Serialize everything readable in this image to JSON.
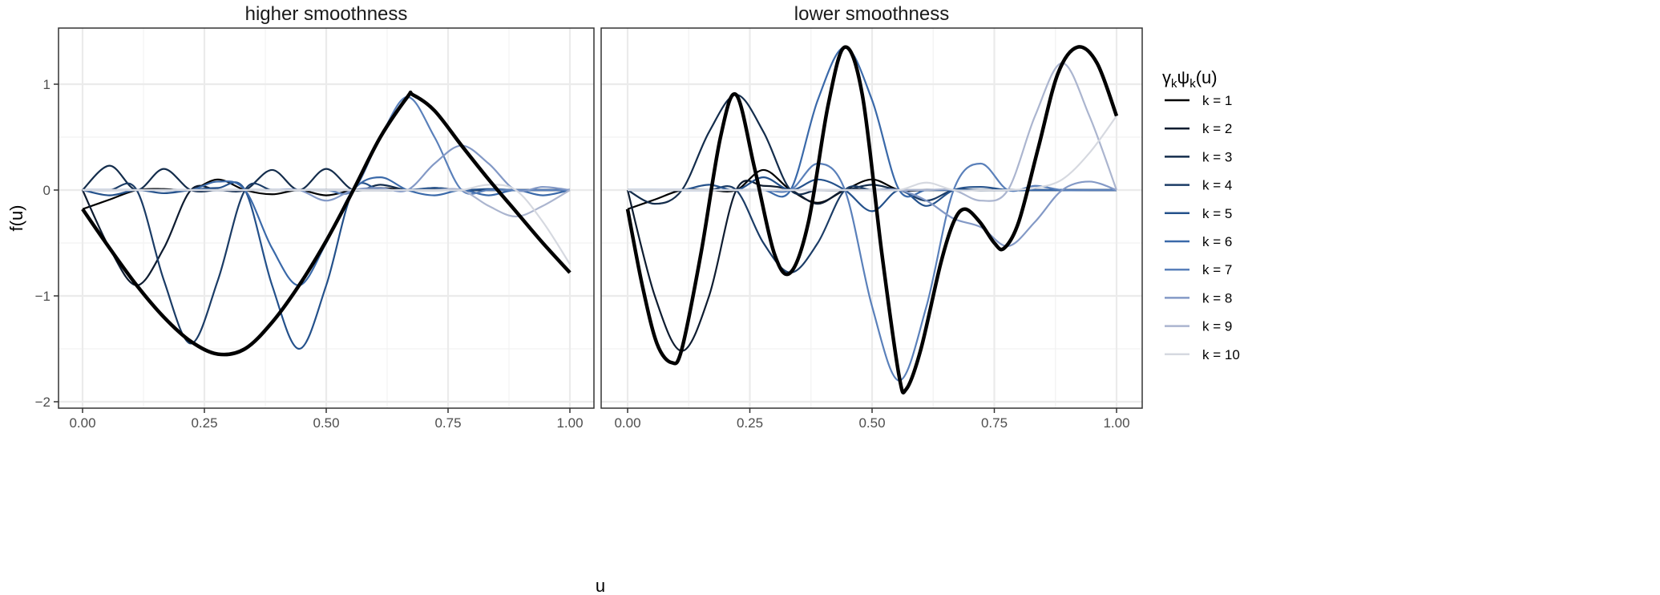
{
  "axis": {
    "ylabel": "f(u)",
    "xlabel": "u"
  },
  "legend": {
    "title_parts": [
      "γ",
      "k",
      "ψ",
      "k",
      "(u)"
    ],
    "entries": [
      "k = 1",
      "k = 2",
      "k = 3",
      "k = 4",
      "k = 5",
      "k = 6",
      "k = 7",
      "k = 8",
      "k = 9",
      "k = 10"
    ],
    "colors": [
      "#000000",
      "#0e1c30",
      "#142d4c",
      "#1b3c66",
      "#24518b",
      "#3a69a9",
      "#5a80ba",
      "#8399c6",
      "#abb5cf",
      "#d6d9e0"
    ],
    "placement": "right"
  },
  "chart_data": [
    {
      "type": "line",
      "title": "higher smoothness",
      "xlim": [
        0,
        1
      ],
      "ylim": [
        -2.05,
        1.45
      ],
      "xticks": [
        "0.00",
        "0.25",
        "0.50",
        "0.75",
        "1.00"
      ],
      "xtick_values": [
        0,
        0.25,
        0.5,
        0.75,
        1
      ],
      "yticks": [
        "1",
        "0",
        "−1",
        "−2"
      ],
      "ytick_values": [
        1,
        0,
        -1,
        -2
      ],
      "grid": true,
      "component_x": [
        0,
        0.0556,
        0.1111,
        0.1667,
        0.2222,
        0.2778,
        0.3333,
        0.3889,
        0.4444,
        0.5,
        0.5556,
        0.6111,
        0.6667,
        0.7222,
        0.7778,
        0.8333,
        0.8889,
        0.9444,
        1
      ],
      "series": [
        {
          "name": "k = 1",
          "values": [
            -0.18,
            -0.09,
            0,
            0.01,
            0,
            0.1,
            0,
            -0.04,
            0,
            -0.05,
            0,
            0.02,
            0,
            0.01,
            0,
            0,
            0,
            0,
            0
          ]
        },
        {
          "name": "k = 2",
          "values": [
            0,
            -0.55,
            -0.9,
            -0.55,
            0,
            0,
            0,
            0,
            0,
            0,
            0,
            0,
            0,
            0,
            0,
            0,
            0,
            0,
            0
          ]
        },
        {
          "name": "k = 3",
          "values": [
            0,
            0.23,
            0,
            0.2,
            0,
            0,
            0,
            0.19,
            0,
            0.2,
            0,
            0.05,
            0,
            0.02,
            0,
            0,
            0,
            0,
            0
          ]
        },
        {
          "name": "k = 4",
          "values": [
            0,
            0,
            0,
            -0.85,
            -1.45,
            -0.85,
            0,
            0,
            0,
            0,
            0,
            0,
            0,
            0,
            0,
            0,
            0,
            0,
            0
          ]
        },
        {
          "name": "k = 5",
          "values": [
            0,
            -0.05,
            0,
            -0.03,
            0,
            0.02,
            0,
            -0.9,
            -1.5,
            -0.9,
            0,
            0,
            0,
            0.02,
            0,
            0.01,
            0,
            0,
            0
          ]
        },
        {
          "name": "k = 6",
          "values": [
            0,
            0,
            0,
            0,
            0,
            0.08,
            0,
            -0.55,
            -0.9,
            -0.5,
            0,
            0.12,
            0,
            -0.05,
            0,
            -0.05,
            0,
            -0.05,
            0
          ]
        },
        {
          "name": "k = 7",
          "values": [
            0,
            0,
            0,
            0,
            0,
            0,
            0,
            0,
            0,
            0,
            0,
            0.5,
            0.88,
            0.5,
            0,
            0,
            0,
            0,
            0
          ]
        },
        {
          "name": "k = 8",
          "values": [
            0,
            0,
            0,
            0,
            0,
            0,
            0,
            0,
            0,
            -0.1,
            0,
            0.02,
            0,
            0.25,
            0.42,
            0.25,
            0,
            0.03,
            0
          ]
        },
        {
          "name": "k = 9",
          "values": [
            0,
            0,
            0,
            0,
            0,
            0,
            0,
            0,
            0,
            0,
            0,
            0,
            0,
            0,
            0,
            -0.15,
            -0.25,
            -0.15,
            0
          ]
        },
        {
          "name": "k = 10",
          "values": [
            0,
            0,
            0,
            0,
            0,
            0,
            0,
            0,
            0,
            0,
            0,
            0,
            0,
            0,
            0,
            0.05,
            0,
            -0.3,
            -0.7
          ]
        }
      ],
      "f_x": [
        0,
        0.0556,
        0.1111,
        0.1667,
        0.2222,
        0.2778,
        0.3333,
        0.3889,
        0.4444,
        0.5,
        0.5556,
        0.6111,
        0.6667,
        0.6778,
        0.7222,
        0.7778,
        0.8333,
        0.8889,
        0.9444,
        1
      ],
      "f_values": [
        -0.18,
        -0.55,
        -0.9,
        -1.2,
        -1.43,
        -1.55,
        -1.5,
        -1.25,
        -0.9,
        -0.48,
        0,
        0.5,
        0.88,
        0.9,
        0.75,
        0.42,
        0.1,
        -0.2,
        -0.5,
        -0.78
      ]
    },
    {
      "type": "line",
      "title": "lower smoothness",
      "xlim": [
        0,
        1
      ],
      "ylim": [
        -2.05,
        1.45
      ],
      "xticks": [
        "0.00",
        "0.25",
        "0.50",
        "0.75",
        "1.00"
      ],
      "xtick_values": [
        0,
        0.25,
        0.5,
        0.75,
        1
      ],
      "grid": true,
      "component_x": [
        0,
        0.0556,
        0.1111,
        0.1667,
        0.2222,
        0.2778,
        0.3333,
        0.3889,
        0.4444,
        0.5,
        0.5556,
        0.6111,
        0.6667,
        0.7222,
        0.7778,
        0.8333,
        0.8889,
        0.9444,
        1
      ],
      "series": [
        {
          "name": "k = 1",
          "values": [
            -0.18,
            -0.09,
            0,
            0,
            0,
            0.19,
            0,
            -0.12,
            0,
            0.1,
            0,
            0,
            0,
            0,
            0,
            0,
            0,
            0,
            0
          ]
        },
        {
          "name": "k = 2",
          "values": [
            0,
            -1.0,
            -1.52,
            -1.0,
            0,
            0.04,
            0,
            -0.13,
            0,
            0,
            0,
            0,
            0,
            0,
            0,
            0,
            0,
            0,
            0
          ]
        },
        {
          "name": "k = 3",
          "values": [
            0,
            -0.13,
            0,
            0.55,
            0.9,
            0.55,
            0,
            0,
            0,
            0.05,
            0,
            0,
            0,
            0,
            0,
            0,
            0,
            0,
            0
          ]
        },
        {
          "name": "k = 4",
          "values": [
            0,
            0,
            0,
            0,
            0,
            -0.5,
            -0.78,
            -0.5,
            0,
            0,
            0,
            -0.1,
            0,
            0,
            0,
            0,
            0,
            0,
            0
          ]
        },
        {
          "name": "k = 5",
          "values": [
            0,
            0,
            0,
            0.05,
            0,
            0.12,
            0,
            0.1,
            0,
            -0.2,
            0,
            -0.15,
            0,
            0.03,
            0,
            0,
            0,
            0,
            0
          ]
        },
        {
          "name": "k = 6",
          "values": [
            0,
            0,
            0,
            0,
            0,
            0,
            0,
            0.85,
            1.35,
            0.85,
            0,
            0,
            0,
            0,
            0,
            0,
            0,
            0,
            0
          ]
        },
        {
          "name": "k = 7",
          "values": [
            0,
            0,
            0,
            0,
            0,
            0,
            0,
            0.25,
            0,
            -1.1,
            -1.8,
            -1.1,
            0,
            0.25,
            0,
            0.04,
            0,
            0,
            0
          ]
        },
        {
          "name": "k = 8",
          "values": [
            0,
            0,
            0,
            0,
            0,
            0,
            0,
            0,
            0,
            0,
            0,
            -0.1,
            -0.27,
            -0.35,
            -0.53,
            -0.3,
            0,
            0.08,
            0
          ]
        },
        {
          "name": "k = 9",
          "values": [
            0,
            0,
            0,
            0,
            0,
            0,
            0,
            0,
            0,
            0,
            0,
            0,
            0,
            -0.1,
            0,
            0.7,
            1.2,
            0.7,
            0
          ]
        },
        {
          "name": "k = 10",
          "values": [
            0,
            0,
            0,
            0,
            0,
            0,
            0,
            0,
            0,
            0,
            0,
            0.07,
            0,
            0,
            0,
            0.02,
            0.1,
            0.35,
            0.7
          ]
        }
      ],
      "f_x": [
        0,
        0.03,
        0.06,
        0.09,
        0.111,
        0.15,
        0.19,
        0.222,
        0.26,
        0.3,
        0.333,
        0.37,
        0.41,
        0.444,
        0.48,
        0.52,
        0.555,
        0.57,
        0.6,
        0.64,
        0.667,
        0.69,
        0.72,
        0.75,
        0.77,
        0.8,
        0.84,
        0.88,
        0.92,
        0.96,
        1
      ],
      "f_values": [
        -0.18,
        -0.9,
        -1.45,
        -1.63,
        -1.5,
        -0.6,
        0.5,
        0.9,
        0.2,
        -0.6,
        -0.78,
        -0.3,
        0.8,
        1.35,
        0.9,
        -0.6,
        -1.75,
        -1.88,
        -1.5,
        -0.7,
        -0.3,
        -0.18,
        -0.3,
        -0.5,
        -0.55,
        -0.3,
        0.4,
        1.1,
        1.35,
        1.2,
        0.7
      ]
    }
  ]
}
